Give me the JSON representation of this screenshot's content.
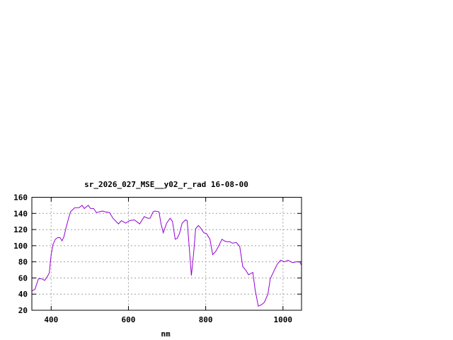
{
  "chart_data": {
    "type": "line",
    "title": "sr_2026_027_MSE__y02_r_rad 16-08-00",
    "xlabel": "nm",
    "ylabel": "",
    "xlim": [
      350,
      1048
    ],
    "ylim": [
      20,
      160
    ],
    "xticks": [
      400,
      600,
      800,
      1000
    ],
    "yticks": [
      20,
      40,
      60,
      80,
      100,
      120,
      140,
      160
    ],
    "grid": true,
    "legend": "none",
    "series": [
      {
        "color": "#9400d3",
        "x": [
          350,
          358,
          367,
          376,
          383,
          389,
          395,
          400,
          405,
          411,
          417,
          423,
          428,
          433,
          438,
          444,
          450,
          461,
          472,
          480,
          486,
          496,
          502,
          510,
          517,
          533,
          539,
          551,
          560,
          574,
          582,
          593,
          603,
          615,
          621,
          629,
          641,
          650,
          656,
          664,
          668,
          679,
          684,
          690,
          699,
          708,
          714,
          721,
          726,
          732,
          739,
          748,
          752,
          757,
          763,
          769,
          774,
          781,
          787,
          795,
          802,
          811,
          818,
          826,
          833,
          842,
          848,
          854,
          863,
          869,
          879,
          888,
          896,
          903,
          911,
          922,
          928,
          936,
          945,
          952,
          961,
          967,
          976,
          985,
          994,
          1004,
          1013,
          1025,
          1034,
          1043,
          1048
        ],
        "y": [
          44,
          46,
          59,
          59,
          57,
          61,
          66,
          89,
          102,
          108,
          110,
          110,
          106,
          111,
          121,
          132,
          142,
          147,
          147,
          150,
          146,
          150,
          146,
          146,
          141,
          143,
          142,
          141,
          134,
          127,
          131,
          128,
          131,
          132,
          130,
          127,
          136,
          134,
          134,
          142,
          143,
          142,
          128,
          116,
          128,
          134,
          130,
          108,
          109,
          115,
          128,
          132,
          131,
          100,
          63,
          92,
          121,
          125,
          122,
          116,
          115,
          108,
          89,
          93,
          99,
          108,
          106,
          105,
          105,
          103,
          104,
          99,
          74,
          70,
          64,
          67,
          45,
          25,
          27,
          30,
          40,
          59,
          68,
          77,
          82,
          80,
          82,
          79,
          80,
          80,
          76
        ]
      }
    ]
  }
}
